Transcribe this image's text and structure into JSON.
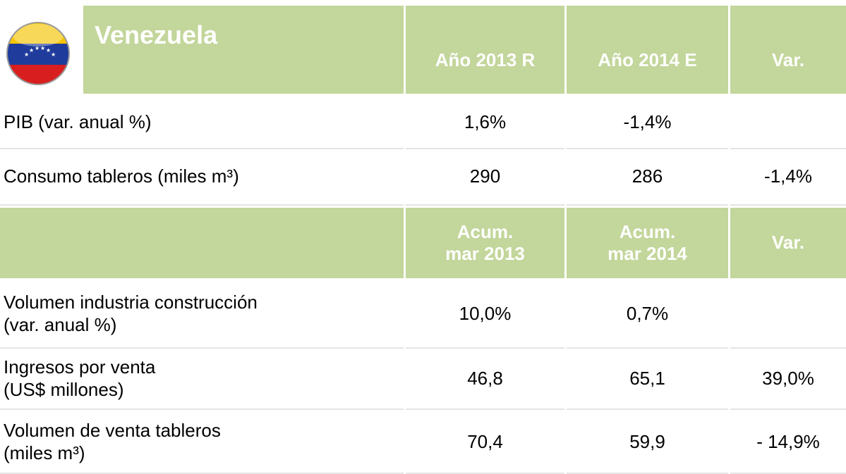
{
  "header": {
    "title": "Venezuela",
    "columns": [
      "Año 2013 R",
      "Año 2014 E",
      "Var."
    ]
  },
  "rows": [
    {
      "label": "PIB  (var. anual %)",
      "values": [
        "1,6%",
        "-1,4%"
      ]
    },
    {
      "label": "Consumo  tableros  (miles m³)",
      "values": [
        "290",
        "286",
        "-1,4%"
      ]
    }
  ],
  "header2": {
    "columns": [
      "Acum.\nmar 2013",
      "Acum.\nmar 2014",
      "Var."
    ]
  },
  "rows2": [
    {
      "label": "Volumen industria construcción\n(var. anual %)",
      "values": [
        "10,0%",
        "0,7%"
      ]
    },
    {
      "label": "Ingresos por venta\n(US$ millones)",
      "values": [
        "46,8",
        "65,1",
        "39,0%"
      ]
    },
    {
      "label": "Volumen de venta tableros\n (miles m³)",
      "values": [
        "70,4",
        "59,9",
        "- 14,9%"
      ]
    }
  ]
}
